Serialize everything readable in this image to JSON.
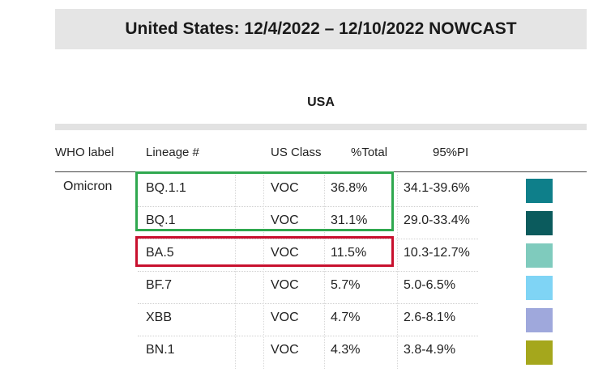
{
  "title": "United States: 12/4/2022 – 12/10/2022 NOWCAST",
  "region": "USA",
  "headers": {
    "who": "WHO label",
    "lineage": "Lineage #",
    "us_class": "US Class",
    "total": "%Total",
    "pi": "95%PI"
  },
  "who_label": "Omicron",
  "rows": [
    {
      "lineage": "BQ.1.1",
      "us_class": "VOC",
      "total": "36.8%",
      "pi": "34.1-39.6%",
      "color": "#0e7f8a"
    },
    {
      "lineage": "BQ.1",
      "us_class": "VOC",
      "total": "31.1%",
      "pi": "29.0-33.4%",
      "color": "#0b5b5d"
    },
    {
      "lineage": "BA.5",
      "us_class": "VOC",
      "total": "11.5%",
      "pi": "10.3-12.7%",
      "color": "#7fcbbd"
    },
    {
      "lineage": "BF.7",
      "us_class": "VOC",
      "total": "5.7%",
      "pi": "5.0-6.5%",
      "color": "#7fd4f5"
    },
    {
      "lineage": "XBB",
      "us_class": "VOC",
      "total": "4.7%",
      "pi": "2.6-8.1%",
      "color": "#9fa8dc"
    },
    {
      "lineage": "BN.1",
      "us_class": "VOC",
      "total": "4.3%",
      "pi": "3.8-4.9%",
      "color": "#a5a71c"
    }
  ],
  "highlights": {
    "green_rows": [
      "BQ.1.1",
      "BQ.1"
    ],
    "green_color": "#2fa84f",
    "red_rows": [
      "BA.5"
    ],
    "red_color": "#c8102e"
  }
}
